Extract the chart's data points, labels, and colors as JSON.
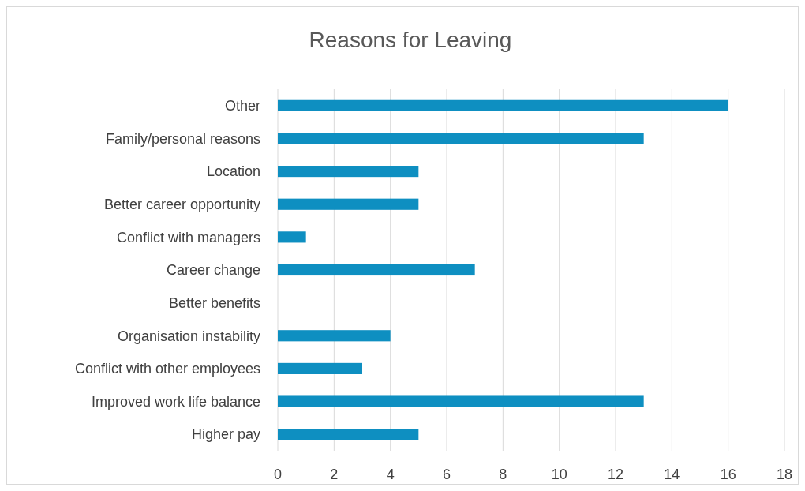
{
  "chart_data": {
    "type": "bar",
    "orientation": "horizontal",
    "title": "Reasons for Leaving",
    "categories": [
      "Other",
      "Family/personal reasons",
      "Location",
      "Better career opportunity",
      "Conflict with managers",
      "Career change",
      "Better benefits",
      "Organisation instability",
      "Conflict with other employees",
      "Improved work life balance",
      "Higher pay"
    ],
    "values": [
      16,
      13,
      5,
      5,
      1,
      7,
      0,
      4,
      3,
      13,
      5
    ],
    "color": "#0e8fc1",
    "xlim": [
      0,
      18
    ],
    "xticks": [
      0,
      2,
      4,
      6,
      8,
      10,
      12,
      14,
      16,
      18
    ],
    "grid": "x"
  }
}
